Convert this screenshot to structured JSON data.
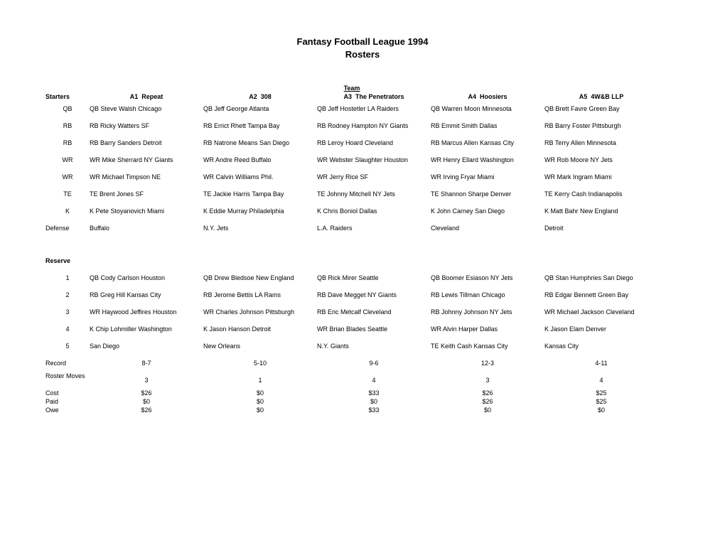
{
  "title_line1": "Fantasy Football League 1994",
  "title_line2": "Rosters",
  "team_header": "Team",
  "starters_label": "Starters",
  "reserve_label": "Reserve",
  "teams": [
    {
      "code": "A1",
      "name": "Repeat"
    },
    {
      "code": "A2",
      "name": "308"
    },
    {
      "code": "A3",
      "name": "The Penetrators"
    },
    {
      "code": "A4",
      "name": "Hoosiers"
    },
    {
      "code": "A5",
      "name": "4W&B LLP"
    }
  ],
  "starter_positions": [
    "QB",
    "RB",
    "RB",
    "WR",
    "WR",
    "TE",
    "K",
    "Defense"
  ],
  "starters": [
    [
      "QB Steve Walsh  Chicago",
      "QB Jeff George  Atlanta",
      "QB Jeff Hostetler  LA Raiders",
      "QB Warren Moon  Minnesota",
      "QB Brett Favre  Green Bay"
    ],
    [
      "RB Ricky Watters   SF",
      "RB Errict Rhett  Tampa Bay",
      "RB Rodney Hampton  NY Giants",
      "RB Emmit Smith  Dallas",
      "RB Barry Foster  Pittsburgh"
    ],
    [
      "RB Barry Sanders  Detroit",
      "RB Natrone Means  San Diego",
      "RB Leroy Hoard  Cleveland",
      "RB Marcus Allen  Kansas City",
      "RB Terry Allen  Minnesota"
    ],
    [
      "WR Mike Sherrard  NY Giants",
      "WR Andre Reed  Buffalo",
      "WR Webster Slaughter  Houston",
      "WR Henry Ellard  Washington",
      "WR Rob Moore  NY Jets"
    ],
    [
      "WR Michael Timpson  NE",
      "WR Calvin Williams  Phil.",
      "WR Jerry Rice  SF",
      "WR Irving Fryar  Miami",
      "WR Mark Ingram  Miami"
    ],
    [
      "TE Brent Jones  SF",
      "TE Jackie Harris  Tampa Bay",
      "TE Johnny Mitchell  NY Jets",
      "TE Shannon Sharpe  Denver",
      "TE Kerry Cash  Indianapolis"
    ],
    [
      "K Pete Stoyanovich  Miami",
      "K Eddie Murray  Philadelphia",
      "K Chris Boniol  Dallas",
      "K John Carney  San Diego",
      "K Matt Bahr  New England"
    ],
    [
      "Buffalo",
      "N.Y. Jets",
      "L.A. Raiders",
      "Cleveland",
      "Detroit"
    ]
  ],
  "reserve_positions": [
    "1",
    "2",
    "3",
    "4",
    "5"
  ],
  "reserves": [
    [
      "QB Cody Carlson   Houston",
      "QB Drew Bledsoe  New England",
      "QB Rick Mirer  Seattle",
      "QB Boomer Esiason  NY Jets",
      "QB Stan Humphries  San Diego"
    ],
    [
      "RB Greg Hill  Kansas City",
      "RB Jerome Bettis  LA Rams",
      "RB Dave Megget  NY Giants",
      "RB Lewis Tillman  Chicago",
      "RB Edgar Bennett  Green Bay"
    ],
    [
      "WR Haywood Jeffires  Houston",
      "WR Charles Johnson  Pittsburgh",
      "RB Eric Metcalf  Cleveland",
      "RB Johnny Johnson  NY Jets",
      "WR Michael Jackson  Cleveland"
    ],
    [
      "K Chip Lohmiller  Washington",
      "K Jason Hanson  Detroit",
      "WR Brian Blades  Seattle",
      "WR Alvin Harper  Dallas",
      "K Jason Elam  Denver"
    ],
    [
      "San Diego",
      "New Orleans",
      "N.Y. Giants",
      "TE Keith Cash  Kansas City",
      "Kansas City"
    ]
  ],
  "summary_rows": [
    {
      "label": "Record",
      "align": "center",
      "values": [
        "8-7",
        "5-10",
        "9-6",
        "12-3",
        "4-11"
      ]
    },
    {
      "label": "Roster Moves",
      "align": "center",
      "values": [
        "3",
        "1",
        "4",
        "3",
        "4"
      ]
    }
  ],
  "money_rows": [
    {
      "label": "Cost",
      "values": [
        "$26",
        "$0",
        "$33",
        "$26",
        "$25"
      ]
    },
    {
      "label": "Paid",
      "values": [
        "$0",
        "$0",
        "$0",
        "$26",
        "$25"
      ]
    },
    {
      "label": "Owe",
      "values": [
        "$26",
        "$0",
        "$33",
        "$0",
        "$0"
      ]
    }
  ]
}
